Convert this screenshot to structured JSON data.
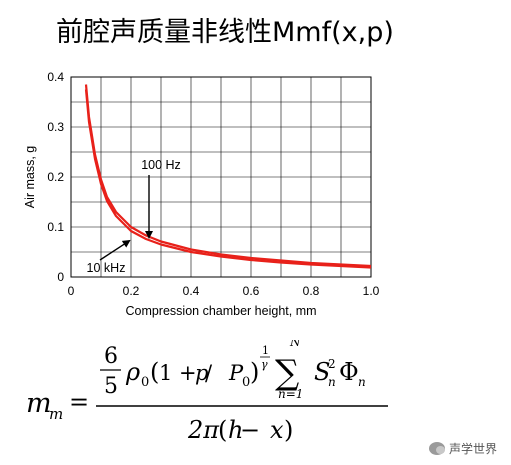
{
  "title": "前腔声质量非线性Mmf(x,p)",
  "chart_data": {
    "type": "line",
    "xlabel": "Compression chamber height, mm",
    "ylabel": "Air mass, g",
    "xlim": [
      0,
      1.0
    ],
    "ylim": [
      0,
      0.4
    ],
    "xticks": [
      "0",
      "0.2",
      "0.4",
      "0.6",
      "0.8",
      "1.0"
    ],
    "yticks": [
      "0",
      "0.1",
      "0.2",
      "0.3",
      "0.4"
    ],
    "grid": true,
    "series": [
      {
        "name": "100 Hz",
        "color": "#e8211a",
        "x": [
          0.05,
          0.06,
          0.08,
          0.1,
          0.12,
          0.15,
          0.2,
          0.25,
          0.3,
          0.4,
          0.5,
          0.6,
          0.7,
          0.8,
          0.9,
          1.0
        ],
        "y": [
          0.385,
          0.32,
          0.245,
          0.195,
          0.16,
          0.13,
          0.1,
          0.083,
          0.071,
          0.055,
          0.045,
          0.038,
          0.033,
          0.028,
          0.025,
          0.022
        ]
      },
      {
        "name": "10 kHz",
        "color": "#e8211a",
        "x": [
          0.05,
          0.06,
          0.08,
          0.1,
          0.12,
          0.15,
          0.2,
          0.25,
          0.3,
          0.4,
          0.5,
          0.6,
          0.7,
          0.8,
          0.9,
          1.0
        ],
        "y": [
          0.375,
          0.31,
          0.236,
          0.186,
          0.152,
          0.122,
          0.092,
          0.076,
          0.065,
          0.05,
          0.041,
          0.034,
          0.029,
          0.025,
          0.022,
          0.019
        ]
      }
    ],
    "annotations": [
      {
        "text": "100 Hz",
        "x": 0.26,
        "y": 0.072
      },
      {
        "text": "10 kHz",
        "x": 0.2,
        "y": 0.08
      }
    ]
  },
  "formula": {
    "lhs": "m",
    "lhs_sub": "m",
    "equals": "=",
    "num_frac_num": "6",
    "num_frac_den": "5",
    "rho": "ρ",
    "rho_sub": "0",
    "paren_open": "(",
    "one_plus": "1 + ",
    "p": "p",
    "slash": " / ",
    "P": "P",
    "P_sub": "0",
    "paren_close": ")",
    "exp_num": "1",
    "exp_den": "γ",
    "sum": "∑",
    "sum_top": "N",
    "sum_bottom": "n=1",
    "S": "S",
    "S_sub": "n",
    "S_sup": "2",
    "Phi": "Φ",
    "Phi_sub": "n",
    "den_2pi": "2π",
    "den_open": "(",
    "den_h": "h",
    "den_minus": " − ",
    "den_x": "x",
    "den_close": ")"
  },
  "watermark": "声学世界"
}
